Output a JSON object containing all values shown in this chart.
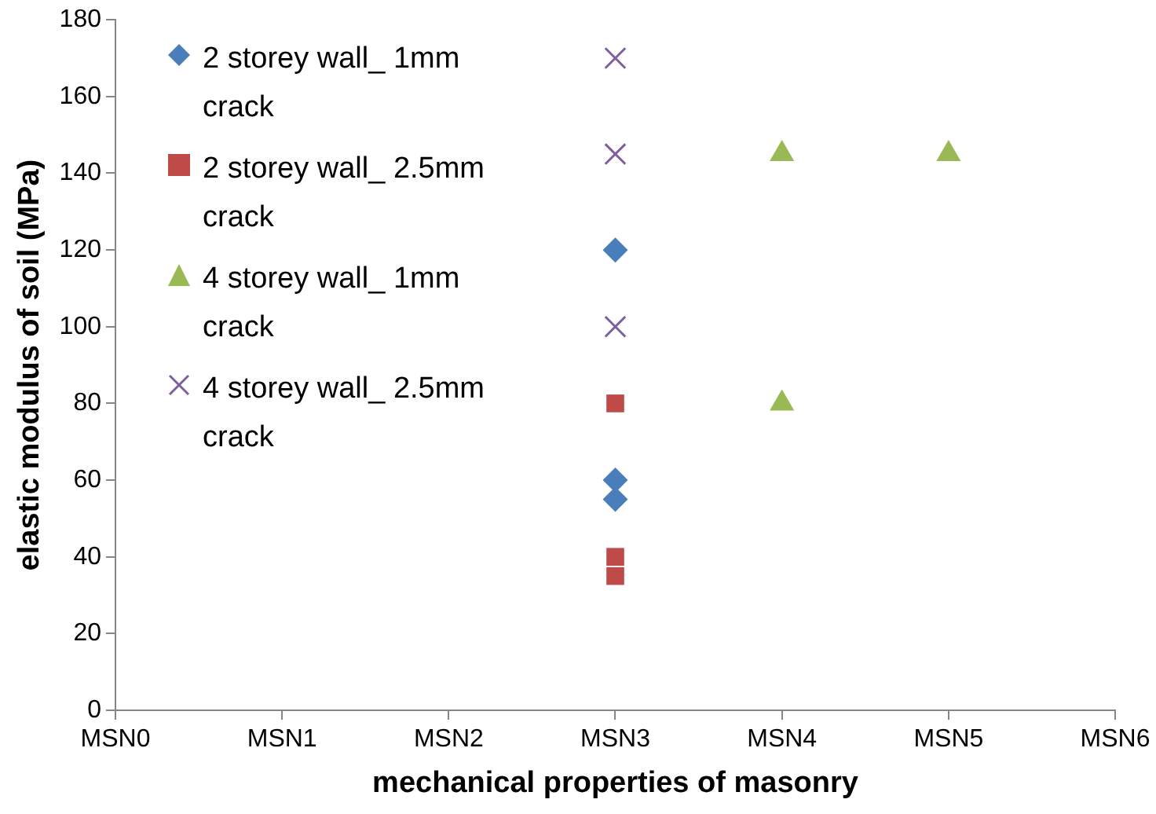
{
  "chart_data": {
    "type": "scatter",
    "xlabel": "mechanical properties of masonry",
    "ylabel": "elastic modulus of soil (MPa)",
    "categories": [
      "MSN0",
      "MSN1",
      "MSN2",
      "MSN3",
      "MSN4",
      "MSN5",
      "MSN6"
    ],
    "ylim": [
      0,
      180
    ],
    "yticks": [
      0,
      20,
      40,
      60,
      80,
      100,
      120,
      140,
      160,
      180
    ],
    "grid": false,
    "legend": "top left",
    "series": [
      {
        "name": "2 storey wall_ 1mm crack",
        "color": "#4a7ebb",
        "marker": "diamond",
        "x": [
          "MSN3",
          "MSN3",
          "MSN3"
        ],
        "values": [
          120,
          60,
          55
        ]
      },
      {
        "name": "2 storey wall_ 2.5mm crack",
        "color": "#be4b48",
        "marker": "square",
        "x": [
          "MSN3",
          "MSN3",
          "MSN3"
        ],
        "values": [
          80,
          40,
          35
        ]
      },
      {
        "name": "4 storey wall_ 1mm crack",
        "color": "#98b954",
        "marker": "triangle",
        "x": [
          "MSN4",
          "MSN4",
          "MSN5"
        ],
        "values": [
          145,
          80,
          145
        ]
      },
      {
        "name": "4 storey wall_ 2.5mm crack",
        "color": "#7d5fa0",
        "marker": "cross",
        "x": [
          "MSN3",
          "MSN3",
          "MSN3"
        ],
        "values": [
          170,
          145,
          100
        ]
      }
    ]
  }
}
